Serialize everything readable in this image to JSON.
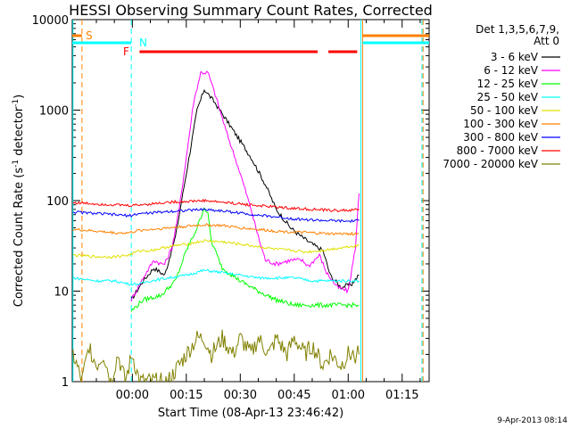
{
  "chart_data": {
    "type": "line",
    "title": "HESSI Observing Summary Count Rates, Corrected",
    "xlabel": "Start Time (08-Apr-13 23:46:42)",
    "ylabel_main": "Corrected Count Rate (s",
    "ylabel_sup1": "-1",
    "ylabel_mid": " detector",
    "ylabel_sup2": "-1",
    "ylabel_end": ")",
    "y_scale": "log",
    "ylim": [
      1,
      10000
    ],
    "xlim_min": [
      -16.7,
      82.5
    ],
    "y_ticks": [
      {
        "label": "1",
        "value": 1
      },
      {
        "label": "10",
        "value": 10
      },
      {
        "label": "100",
        "value": 100
      },
      {
        "label": "1000",
        "value": 1000
      },
      {
        "label": "10000",
        "value": 10000
      }
    ],
    "x_ticks": [
      {
        "label": "00:00",
        "value": 0
      },
      {
        "label": "00:15",
        "value": 15
      },
      {
        "label": "00:30",
        "value": 30
      },
      {
        "label": "00:45",
        "value": 45
      },
      {
        "label": "01:00",
        "value": 60
      },
      {
        "label": "01:15",
        "value": 75
      }
    ],
    "legend_header": [
      "Det 1,3,5,6,7,9,",
      "Att 0"
    ],
    "series": [
      {
        "name": "3 - 6 keV",
        "color": "#000000",
        "points": [
          [
            -0.3,
            8
          ],
          [
            3,
            13
          ],
          [
            6,
            18
          ],
          [
            9,
            15
          ],
          [
            12,
            40
          ],
          [
            15,
            200
          ],
          [
            18,
            1000
          ],
          [
            20,
            1700
          ],
          [
            23,
            1200
          ],
          [
            28,
            600
          ],
          [
            33,
            300
          ],
          [
            37,
            150
          ],
          [
            40,
            80
          ],
          [
            44,
            50
          ],
          [
            47,
            40
          ],
          [
            50,
            33
          ],
          [
            53,
            28
          ],
          [
            55,
            15
          ],
          [
            58,
            11
          ],
          [
            61,
            12
          ],
          [
            63,
            15
          ]
        ]
      },
      {
        "name": "6 - 12 keV",
        "color": "#ff00ff",
        "points": [
          [
            -0.3,
            8
          ],
          [
            3,
            14
          ],
          [
            6,
            22
          ],
          [
            8,
            20
          ],
          [
            9,
            20
          ],
          [
            11,
            30
          ],
          [
            13,
            80
          ],
          [
            15,
            300
          ],
          [
            17,
            1200
          ],
          [
            19,
            2600
          ],
          [
            21,
            2600
          ],
          [
            23,
            1500
          ],
          [
            26,
            600
          ],
          [
            30,
            200
          ],
          [
            33,
            80
          ],
          [
            35,
            40
          ],
          [
            37,
            22
          ],
          [
            40,
            20
          ],
          [
            44,
            22
          ],
          [
            47,
            22
          ],
          [
            49,
            19
          ],
          [
            52,
            25
          ],
          [
            54,
            16
          ],
          [
            57,
            11
          ],
          [
            60,
            10
          ],
          [
            62,
            30
          ],
          [
            63,
            120
          ]
        ]
      },
      {
        "name": "12 - 25 keV",
        "color": "#00ff00",
        "points": [
          [
            -0.3,
            6
          ],
          [
            3,
            8
          ],
          [
            8,
            9
          ],
          [
            12,
            13
          ],
          [
            15,
            28
          ],
          [
            18,
            50
          ],
          [
            20,
            85
          ],
          [
            21,
            70
          ],
          [
            22,
            35
          ],
          [
            25,
            18
          ],
          [
            30,
            13
          ],
          [
            35,
            10
          ],
          [
            40,
            8
          ],
          [
            45,
            7
          ],
          [
            50,
            7
          ],
          [
            55,
            7
          ],
          [
            60,
            7
          ],
          [
            63,
            7
          ]
        ]
      },
      {
        "name": "25 - 50 keV",
        "color": "#00ffff",
        "points": [
          [
            -16.5,
            14
          ],
          [
            -10,
            13
          ],
          [
            -5,
            13
          ],
          [
            -1,
            12
          ],
          [
            2,
            12
          ],
          [
            5,
            13
          ],
          [
            10,
            14
          ],
          [
            15,
            15
          ],
          [
            20,
            17
          ],
          [
            25,
            16
          ],
          [
            30,
            15
          ],
          [
            35,
            14
          ],
          [
            40,
            14
          ],
          [
            45,
            14
          ],
          [
            50,
            13
          ],
          [
            55,
            13
          ],
          [
            60,
            13
          ],
          [
            63,
            13
          ]
        ]
      },
      {
        "name": "50 - 100 keV",
        "color": "#e0e000",
        "points": [
          [
            -16.5,
            25
          ],
          [
            -10,
            24
          ],
          [
            -5,
            24
          ],
          [
            -1,
            25
          ],
          [
            2,
            28
          ],
          [
            5,
            28
          ],
          [
            10,
            31
          ],
          [
            15,
            33
          ],
          [
            20,
            36
          ],
          [
            25,
            35
          ],
          [
            30,
            33
          ],
          [
            35,
            31
          ],
          [
            40,
            29
          ],
          [
            45,
            28
          ],
          [
            48,
            27
          ],
          [
            52,
            28
          ],
          [
            55,
            29
          ],
          [
            60,
            31
          ],
          [
            63,
            32
          ]
        ]
      },
      {
        "name": "100 - 300 keV",
        "color": "#ff8000",
        "points": [
          [
            -16.5,
            48
          ],
          [
            -10,
            46
          ],
          [
            -5,
            44
          ],
          [
            -1,
            44
          ],
          [
            2,
            47
          ],
          [
            5,
            48
          ],
          [
            10,
            50
          ],
          [
            15,
            52
          ],
          [
            20,
            54
          ],
          [
            25,
            53
          ],
          [
            30,
            50
          ],
          [
            35,
            48
          ],
          [
            40,
            46
          ],
          [
            45,
            45
          ],
          [
            50,
            44
          ],
          [
            55,
            43
          ],
          [
            60,
            43
          ],
          [
            63,
            43
          ]
        ]
      },
      {
        "name": "300 - 800 keV",
        "color": "#0000ff",
        "points": [
          [
            -16.5,
            75
          ],
          [
            -10,
            72
          ],
          [
            -5,
            70
          ],
          [
            -1,
            68
          ],
          [
            2,
            72
          ],
          [
            5,
            73
          ],
          [
            10,
            76
          ],
          [
            15,
            78
          ],
          [
            20,
            80
          ],
          [
            25,
            77
          ],
          [
            30,
            73
          ],
          [
            35,
            69
          ],
          [
            40,
            66
          ],
          [
            45,
            63
          ],
          [
            50,
            61
          ],
          [
            55,
            60
          ],
          [
            60,
            59
          ],
          [
            63,
            60
          ]
        ]
      },
      {
        "name": "800 - 7000 keV",
        "color": "#ff0000",
        "points": [
          [
            -16.5,
            95
          ],
          [
            -10,
            92
          ],
          [
            -5,
            90
          ],
          [
            -1,
            88
          ],
          [
            2,
            90
          ],
          [
            5,
            92
          ],
          [
            10,
            96
          ],
          [
            15,
            98
          ],
          [
            20,
            100
          ],
          [
            25,
            96
          ],
          [
            30,
            92
          ],
          [
            35,
            88
          ],
          [
            40,
            85
          ],
          [
            45,
            82
          ],
          [
            50,
            80
          ],
          [
            55,
            78
          ],
          [
            60,
            78
          ],
          [
            63,
            80
          ]
        ]
      },
      {
        "name": "7000 - 20000 keV",
        "color": "#808000",
        "points": [
          [
            -16.5,
            2
          ],
          [
            -14,
            1
          ],
          [
            -12,
            2.5
          ],
          [
            -10,
            1.5
          ],
          [
            -8,
            2
          ],
          [
            -6,
            1
          ],
          [
            -4,
            2
          ],
          [
            -2,
            1
          ],
          [
            0,
            2
          ],
          [
            2,
            1
          ],
          [
            4,
            1
          ],
          [
            6,
            1
          ],
          [
            8,
            1
          ],
          [
            10,
            1
          ],
          [
            15,
            2
          ],
          [
            18,
            3
          ],
          [
            20,
            3
          ],
          [
            22,
            2
          ],
          [
            25,
            3
          ],
          [
            28,
            2
          ],
          [
            30,
            3
          ],
          [
            33,
            2
          ],
          [
            35,
            3
          ],
          [
            38,
            2
          ],
          [
            40,
            3
          ],
          [
            43,
            2
          ],
          [
            45,
            3
          ],
          [
            48,
            2
          ],
          [
            50,
            2.5
          ],
          [
            53,
            1.5
          ],
          [
            55,
            2
          ],
          [
            58,
            1.5
          ],
          [
            60,
            2
          ],
          [
            63,
            2
          ]
        ]
      }
    ],
    "annotations": [
      {
        "label": "S",
        "color": "#ff8000"
      },
      {
        "label": "N",
        "color": "#00ffff"
      },
      {
        "label": "F",
        "color": "#ff0000"
      }
    ],
    "footer_timestamp": "9-Apr-2013 08:14"
  }
}
